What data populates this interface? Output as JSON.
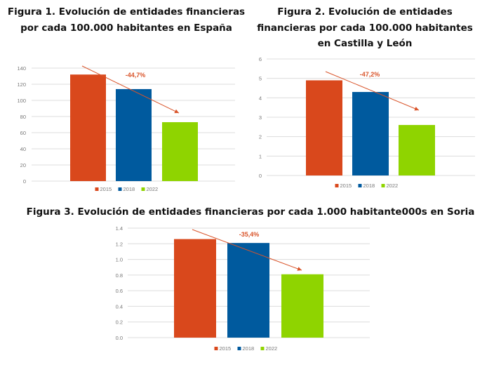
{
  "chart_data": [
    {
      "type": "bar",
      "title": "Figura 1. Evolución de entidades financieras por cada 100.000 habitantes en España",
      "categories": [
        "2015",
        "2018",
        "2022"
      ],
      "values": [
        132,
        114,
        73
      ],
      "colors": [
        "#d9481c",
        "#005a9e",
        "#8fd400"
      ],
      "ylim": [
        0,
        140
      ],
      "yticks": [
        "0",
        "20",
        "40",
        "60",
        "80",
        "100",
        "120",
        "140"
      ],
      "grid": true,
      "legend": "bottom",
      "annotation": "-44,7%",
      "trend_arrow": "decreasing"
    },
    {
      "type": "bar",
      "title": "Figura 2. Evolución de entidades financieras por cada 100.000 habitantes en Castilla y León",
      "categories": [
        "2015",
        "2018",
        "2022"
      ],
      "values": [
        4.9,
        4.3,
        2.6
      ],
      "colors": [
        "#d9481c",
        "#005a9e",
        "#8fd400"
      ],
      "ylim": [
        0,
        6
      ],
      "yticks": [
        "0",
        "1",
        "2",
        "3",
        "4",
        "5",
        "6"
      ],
      "grid": true,
      "legend": "bottom",
      "annotation": "-47,2%",
      "trend_arrow": "decreasing"
    },
    {
      "type": "bar",
      "title": "Figura 3. Evolución de entidades financieras por cada 1.000 habitante000s en Soria",
      "categories": [
        "2015",
        "2018",
        "2022"
      ],
      "values": [
        1.26,
        1.21,
        0.81
      ],
      "colors": [
        "#d9481c",
        "#005a9e",
        "#8fd400"
      ],
      "ylim": [
        0,
        1.4
      ],
      "yticks": [
        "0.0",
        "0.2",
        "0.4",
        "0.6",
        "0.8",
        "1.0",
        "1.2",
        "1.4"
      ],
      "grid": true,
      "legend": "bottom",
      "annotation": "-35,4%",
      "trend_arrow": "decreasing"
    }
  ]
}
